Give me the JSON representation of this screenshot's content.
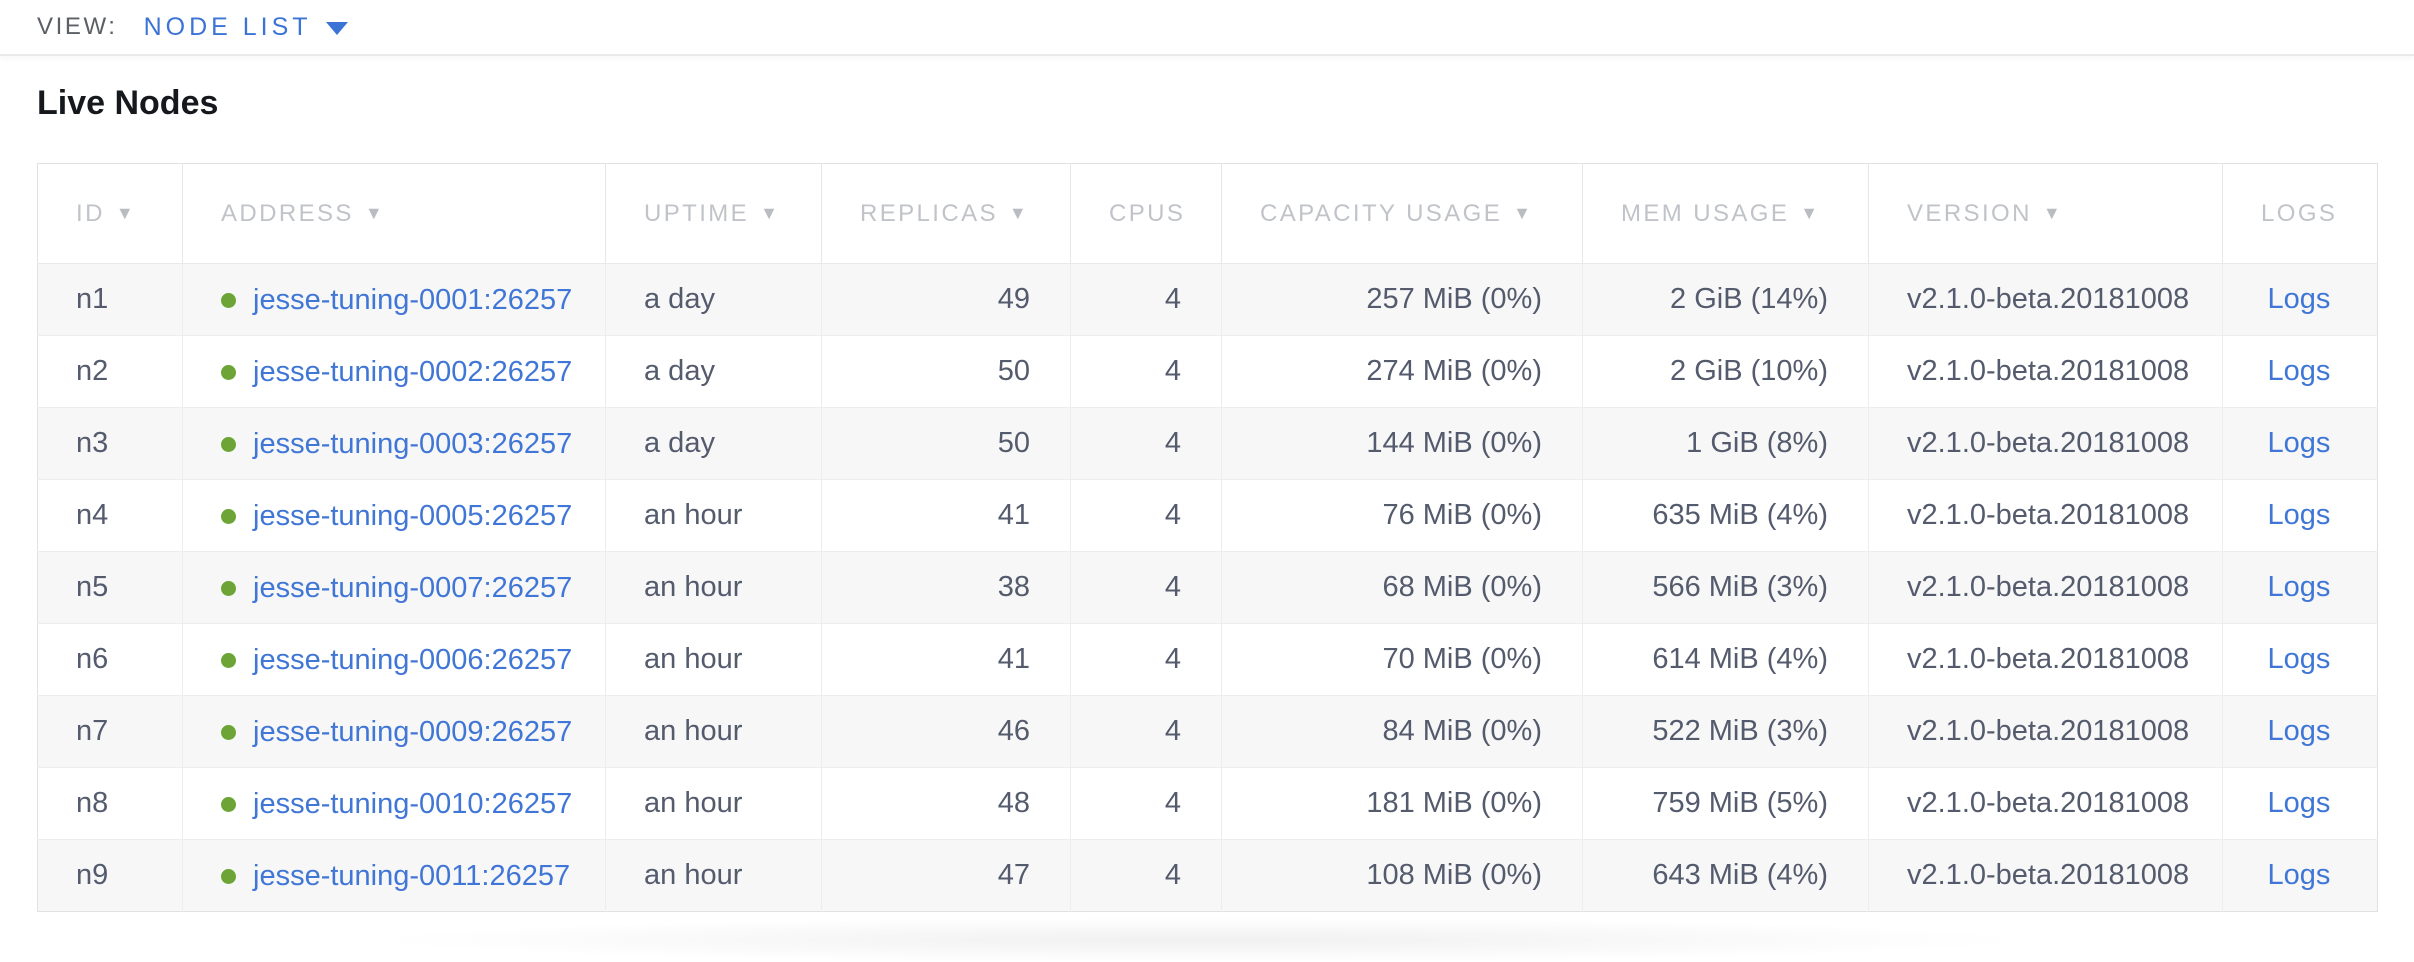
{
  "toolbar": {
    "view_label": "VIEW:",
    "view_value": "NODE LIST"
  },
  "page": {
    "title": "Live Nodes"
  },
  "table": {
    "columns": [
      {
        "key": "id",
        "label": "ID",
        "sortable": true,
        "header_align": "left",
        "align": "left"
      },
      {
        "key": "address",
        "label": "ADDRESS",
        "sortable": true,
        "header_align": "left",
        "align": "left"
      },
      {
        "key": "uptime",
        "label": "UPTIME",
        "sortable": true,
        "header_align": "left",
        "align": "left"
      },
      {
        "key": "replicas",
        "label": "REPLICAS",
        "sortable": true,
        "header_align": "left",
        "align": "right"
      },
      {
        "key": "cpus",
        "label": "CPUS",
        "sortable": false,
        "header_align": "center",
        "align": "right"
      },
      {
        "key": "capacity_usage",
        "label": "CAPACITY USAGE",
        "sortable": true,
        "header_align": "left",
        "align": "right"
      },
      {
        "key": "mem_usage",
        "label": "MEM USAGE",
        "sortable": true,
        "header_align": "left",
        "align": "right"
      },
      {
        "key": "version",
        "label": "VERSION",
        "sortable": true,
        "header_align": "left",
        "align": "left"
      },
      {
        "key": "logs",
        "label": "LOGS",
        "sortable": false,
        "header_align": "center",
        "align": "center"
      }
    ],
    "rows": [
      {
        "id": "n1",
        "node_status": "live",
        "address": "jesse-tuning-0001:26257",
        "uptime": "a day",
        "replicas": "49",
        "cpus": "4",
        "capacity_usage": "257 MiB (0%)",
        "mem_usage": "2 GiB (14%)",
        "version": "v2.1.0-beta.20181008",
        "logs": "Logs"
      },
      {
        "id": "n2",
        "node_status": "live",
        "address": "jesse-tuning-0002:26257",
        "uptime": "a day",
        "replicas": "50",
        "cpus": "4",
        "capacity_usage": "274 MiB (0%)",
        "mem_usage": "2 GiB (10%)",
        "version": "v2.1.0-beta.20181008",
        "logs": "Logs"
      },
      {
        "id": "n3",
        "node_status": "live",
        "address": "jesse-tuning-0003:26257",
        "uptime": "a day",
        "replicas": "50",
        "cpus": "4",
        "capacity_usage": "144 MiB (0%)",
        "mem_usage": "1 GiB (8%)",
        "version": "v2.1.0-beta.20181008",
        "logs": "Logs"
      },
      {
        "id": "n4",
        "node_status": "live",
        "address": "jesse-tuning-0005:26257",
        "uptime": "an hour",
        "replicas": "41",
        "cpus": "4",
        "capacity_usage": "76 MiB (0%)",
        "mem_usage": "635 MiB (4%)",
        "version": "v2.1.0-beta.20181008",
        "logs": "Logs"
      },
      {
        "id": "n5",
        "node_status": "live",
        "address": "jesse-tuning-0007:26257",
        "uptime": "an hour",
        "replicas": "38",
        "cpus": "4",
        "capacity_usage": "68 MiB (0%)",
        "mem_usage": "566 MiB (3%)",
        "version": "v2.1.0-beta.20181008",
        "logs": "Logs"
      },
      {
        "id": "n6",
        "node_status": "live",
        "address": "jesse-tuning-0006:26257",
        "uptime": "an hour",
        "replicas": "41",
        "cpus": "4",
        "capacity_usage": "70 MiB (0%)",
        "mem_usage": "614 MiB (4%)",
        "version": "v2.1.0-beta.20181008",
        "logs": "Logs"
      },
      {
        "id": "n7",
        "node_status": "live",
        "address": "jesse-tuning-0009:26257",
        "uptime": "an hour",
        "replicas": "46",
        "cpus": "4",
        "capacity_usage": "84 MiB (0%)",
        "mem_usage": "522 MiB (3%)",
        "version": "v2.1.0-beta.20181008",
        "logs": "Logs"
      },
      {
        "id": "n8",
        "node_status": "live",
        "address": "jesse-tuning-0010:26257",
        "uptime": "an hour",
        "replicas": "48",
        "cpus": "4",
        "capacity_usage": "181 MiB (0%)",
        "mem_usage": "759 MiB (5%)",
        "version": "v2.1.0-beta.20181008",
        "logs": "Logs"
      },
      {
        "id": "n9",
        "node_status": "live",
        "address": "jesse-tuning-0011:26257",
        "uptime": "an hour",
        "replicas": "47",
        "cpus": "4",
        "capacity_usage": "108 MiB (0%)",
        "mem_usage": "643 MiB (4%)",
        "version": "v2.1.0-beta.20181008",
        "logs": "Logs"
      }
    ]
  },
  "icons": {
    "sort_arrow": "▼",
    "dropdown_arrow": "dropdown-caret-down",
    "live_status_dot": "green-circle"
  },
  "colors": {
    "accent_blue": "#3c74d5",
    "link_blue": "#4076d6",
    "live_green": "#6ca535",
    "header_text": "#c0c3c8",
    "cell_text": "#545b6d",
    "row_stripe": "#f7f7f8",
    "title_text": "#15181d"
  }
}
